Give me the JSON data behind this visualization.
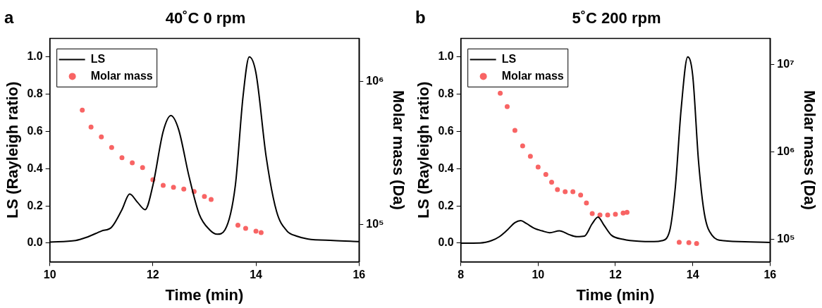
{
  "chart_data": [
    {
      "type": "line",
      "title": "40˚C 0 rpm",
      "annotations": [
        "a"
      ],
      "xlabel": "Time (min)",
      "ylabel": "LS (Rayleigh ratio)",
      "y2label": "Molar mass (Da)",
      "legend": "top left",
      "grid": false,
      "xlim": [
        10,
        16
      ],
      "xticks": [
        10,
        12,
        14,
        16
      ],
      "ylim": [
        -0.1,
        1.1
      ],
      "yticks": [
        {
          "value": 0,
          "label": "0.0"
        },
        {
          "value": 0.2,
          "label": "0.2"
        },
        {
          "value": 0.4,
          "label": "0.4"
        },
        {
          "value": 0.6,
          "label": "0.6"
        },
        {
          "value": 0.8,
          "label": "0.8"
        },
        {
          "value": 1,
          "label": "1.0"
        }
      ],
      "log": "y2",
      "y2lim": [
        55000,
        2000000
      ],
      "y2ticks": [
        {
          "value": 100000,
          "label": "10⁵"
        },
        {
          "value": 1000000,
          "label": "10⁶"
        }
      ],
      "series": [
        {
          "name": "LS",
          "color": "#000000",
          "marker": "none",
          "line_style": "solid",
          "x": [
            10,
            10.5,
            10.7,
            11,
            11.2,
            11.4,
            11.55,
            11.7,
            11.85,
            12,
            12.2,
            12.35,
            12.5,
            12.7,
            12.9,
            13.1,
            13.25,
            13.4,
            13.6,
            13.75,
            13.87,
            14,
            14.2,
            14.4,
            14.6,
            14.8,
            15,
            15.5,
            16
          ],
          "values": [
            0.006,
            0.014,
            0.03,
            0.065,
            0.086,
            0.18,
            0.264,
            0.22,
            0.18,
            0.31,
            0.6,
            0.685,
            0.61,
            0.36,
            0.155,
            0.072,
            0.048,
            0.072,
            0.31,
            0.79,
            1.0,
            0.914,
            0.46,
            0.17,
            0.066,
            0.037,
            0.023,
            0.014,
            0.008
          ]
        },
        {
          "name": "Molar mass",
          "type": "scatter",
          "axis": "y2",
          "color": "#f86464",
          "marker": "circle",
          "x": [
            10.63,
            10.8,
            11,
            11.2,
            11.4,
            11.6,
            11.8,
            12,
            12.2,
            12.4,
            12.6,
            12.8,
            13,
            13.13,
            13.65,
            13.8,
            14,
            14.1
          ],
          "values": [
            630000,
            480000,
            410000,
            346000,
            293000,
            270000,
            250000,
            206000,
            188000,
            182000,
            177000,
            170000,
            157000,
            150000,
            99000,
            94000,
            90000,
            88000
          ]
        }
      ]
    },
    {
      "type": "line",
      "title": "5˚C 200 rpm",
      "annotations": [
        "b"
      ],
      "xlabel": "Time (min)",
      "ylabel": "LS (Rayleigh ratio)",
      "y2label": "Molar mass (Da)",
      "legend": "top left",
      "grid": false,
      "xlim": [
        8,
        16
      ],
      "xticks": [
        8,
        10,
        12,
        14,
        16
      ],
      "ylim": [
        -0.1,
        1.1
      ],
      "yticks": [
        {
          "value": 0,
          "label": "0.0"
        },
        {
          "value": 0.2,
          "label": "0.2"
        },
        {
          "value": 0.4,
          "label": "0.4"
        },
        {
          "value": 0.6,
          "label": "0.6"
        },
        {
          "value": 0.8,
          "label": "0.8"
        },
        {
          "value": 1,
          "label": "1.0"
        }
      ],
      "log": "y2",
      "y2lim": [
        55000,
        20000000
      ],
      "y2ticks": [
        {
          "value": 100000,
          "label": "10⁵"
        },
        {
          "value": 1000000,
          "label": "10⁶"
        },
        {
          "value": 10000000,
          "label": "10⁷"
        }
      ],
      "series": [
        {
          "name": "LS",
          "color": "#000000",
          "marker": "none",
          "line_style": "solid",
          "x": [
            8,
            8.5,
            8.8,
            9,
            9.2,
            9.4,
            9.55,
            9.7,
            9.9,
            10.1,
            10.3,
            10.55,
            10.8,
            11,
            11.2,
            11.4,
            11.55,
            11.7,
            11.9,
            12.2,
            12.6,
            13,
            13.2,
            13.4,
            13.55,
            13.7,
            13.87,
            14,
            14.15,
            14.3,
            14.5,
            14.8,
            15.5,
            16
          ],
          "values": [
            0,
            0.001,
            0.014,
            0.035,
            0.07,
            0.11,
            0.121,
            0.105,
            0.08,
            0.066,
            0.056,
            0.066,
            0.046,
            0.035,
            0.038,
            0.105,
            0.14,
            0.098,
            0.042,
            0.021,
            0.01,
            0.008,
            0.013,
            0.063,
            0.3,
            0.72,
            1.0,
            0.9,
            0.44,
            0.16,
            0.042,
            0.013,
            0.007,
            0.004
          ]
        },
        {
          "name": "Molar mass",
          "type": "scatter",
          "axis": "y2",
          "color": "#f86464",
          "marker": "circle",
          "x": [
            9.02,
            9.2,
            9.4,
            9.6,
            9.8,
            10,
            10.2,
            10.35,
            10.5,
            10.7,
            10.9,
            11.1,
            11.25,
            11.4,
            11.6,
            11.8,
            12,
            12.2,
            12.3,
            13.65,
            13.9,
            14.1
          ],
          "values": [
            4700000,
            3300000,
            1760000,
            1170000,
            890000,
            670000,
            550000,
            450000,
            370000,
            350000,
            350000,
            320000,
            260000,
            196000,
            189000,
            189000,
            193000,
            199000,
            203000,
            92000,
            91000,
            89000
          ]
        }
      ]
    }
  ]
}
